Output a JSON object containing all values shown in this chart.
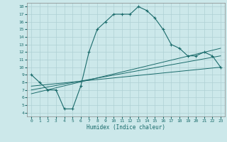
{
  "xlabel": "Humidex (Indice chaleur)",
  "ylabel": "",
  "bg_color": "#cce8ea",
  "grid_color": "#aed0d4",
  "line_color": "#1a6b6b",
  "xlim": [
    -0.5,
    23.5
  ],
  "ylim": [
    3.5,
    18.5
  ],
  "xticks": [
    0,
    1,
    2,
    3,
    4,
    5,
    6,
    7,
    8,
    9,
    10,
    11,
    12,
    13,
    14,
    15,
    16,
    17,
    18,
    19,
    20,
    21,
    22,
    23
  ],
  "yticks": [
    4,
    5,
    6,
    7,
    8,
    9,
    10,
    11,
    12,
    13,
    14,
    15,
    16,
    17,
    18
  ],
  "series": {
    "main": {
      "x": [
        0,
        1,
        2,
        3,
        4,
        5,
        6,
        7,
        8,
        9,
        10,
        11,
        12,
        13,
        14,
        15,
        16,
        17,
        18,
        19,
        20,
        21,
        22,
        23
      ],
      "y": [
        9.0,
        8.0,
        7.0,
        7.0,
        4.5,
        4.5,
        7.5,
        12.0,
        15.0,
        16.0,
        17.0,
        17.0,
        17.0,
        18.0,
        17.5,
        16.5,
        15.0,
        13.0,
        12.5,
        11.5,
        11.5,
        12.0,
        11.5,
        10.0
      ]
    },
    "line1": {
      "x": [
        0,
        23
      ],
      "y": [
        7.5,
        10.0
      ]
    },
    "line2": {
      "x": [
        0,
        23
      ],
      "y": [
        7.0,
        11.5
      ]
    },
    "line3": {
      "x": [
        0,
        23
      ],
      "y": [
        6.5,
        12.5
      ]
    }
  }
}
